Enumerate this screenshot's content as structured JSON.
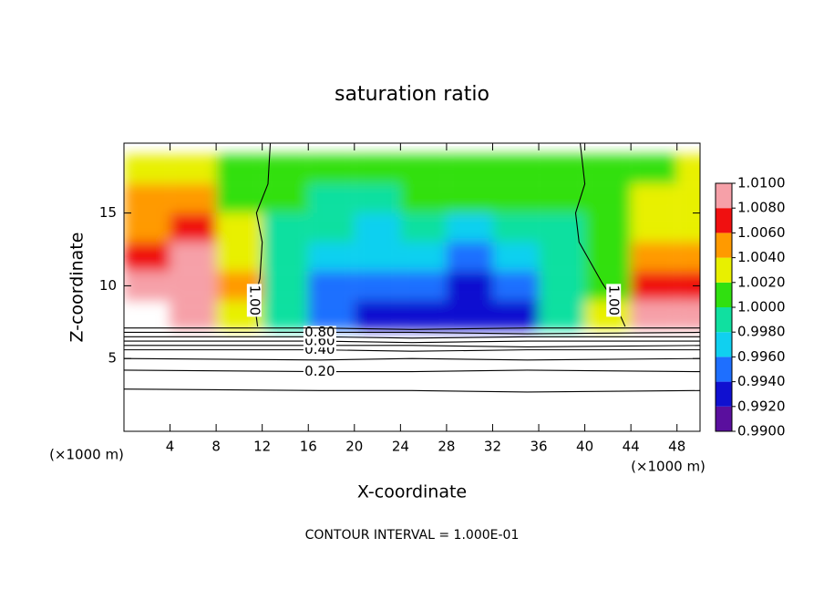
{
  "chart_data": {
    "type": "contour",
    "title": "saturation ratio",
    "xlabel": "X-coordinate",
    "ylabel": "Z-coordinate",
    "x_unit": "(×1000 m)",
    "footer": "CONTOUR INTERVAL = 1.000E-01",
    "xlim": [
      0,
      50
    ],
    "ylim": [
      0,
      19.8
    ],
    "xticks": [
      4,
      8,
      12,
      16,
      20,
      24,
      28,
      32,
      36,
      40,
      44,
      48
    ],
    "yticks": [
      5,
      10,
      15
    ],
    "x": [
      2,
      6,
      10,
      14,
      18,
      22,
      26,
      30,
      34,
      38,
      42,
      46,
      50
    ],
    "z": [
      18,
      16,
      14,
      12,
      10,
      8
    ],
    "values": [
      [
        1.003,
        1.002,
        1.001,
        1.0,
        1.0,
        1.0,
        1.0,
        1.0,
        1.0,
        1.0,
        1.0,
        1.001,
        1.002
      ],
      [
        1.004,
        1.004,
        1.001,
        1.0,
        0.9995,
        0.9995,
        1.0,
        1.0,
        1.0,
        1.0,
        1.0,
        1.002,
        1.003
      ],
      [
        1.005,
        1.006,
        1.002,
        0.9995,
        0.998,
        0.9975,
        0.998,
        0.997,
        0.998,
        0.9995,
        1.0,
        1.003,
        1.003
      ],
      [
        1.007,
        1.008,
        1.003,
        0.9995,
        0.997,
        0.996,
        0.996,
        0.995,
        0.996,
        0.999,
        1.0,
        1.004,
        1.005
      ],
      [
        1.009,
        1.009,
        1.004,
        0.9995,
        0.995,
        0.994,
        0.995,
        0.993,
        0.994,
        0.998,
        1.001,
        1.006,
        1.007
      ],
      [
        null,
        1.008,
        1.002,
        0.999,
        0.994,
        0.993,
        0.993,
        0.992,
        0.993,
        0.998,
        1.002,
        1.008,
        1.009
      ]
    ],
    "clim": [
      0.99,
      1.01
    ],
    "colors": [
      "#5a0f9e",
      "#1010d0",
      "#1e6fff",
      "#10d0f0",
      "#10e0a0",
      "#30e010",
      "#e8f000",
      "#ff9a00",
      "#f01010",
      "#f6a0a8"
    ],
    "colorbar_ticks": [
      {
        "value": 1.01,
        "label": "1.0100"
      },
      {
        "value": 1.008,
        "label": "1.0080"
      },
      {
        "value": 1.006,
        "label": "1.0060"
      },
      {
        "value": 1.004,
        "label": "1.0040"
      },
      {
        "value": 1.002,
        "label": "1.0020"
      },
      {
        "value": 1.0,
        "label": "1.0000"
      },
      {
        "value": 0.998,
        "label": "0.9980"
      },
      {
        "value": 0.996,
        "label": "0.9960"
      },
      {
        "value": 0.994,
        "label": "0.9940"
      },
      {
        "value": 0.992,
        "label": "0.9920"
      },
      {
        "value": 0.99,
        "label": "0.9900"
      }
    ],
    "contours": [
      {
        "level": 0.1,
        "x": [
          0,
          17,
          25,
          35,
          50
        ],
        "y": [
          2.9,
          2.8,
          2.8,
          2.7,
          2.8
        ]
      },
      {
        "level": 0.2,
        "label": "0.20",
        "x": [
          0,
          17,
          25,
          35,
          50
        ],
        "y": [
          4.2,
          4.1,
          4.1,
          4.2,
          4.1
        ]
      },
      {
        "level": 0.3,
        "x": [
          0,
          17,
          25,
          35,
          50
        ],
        "y": [
          5.0,
          4.9,
          5.0,
          4.9,
          5.0
        ]
      },
      {
        "level": 0.4,
        "label": "0.40",
        "x": [
          0,
          17,
          25,
          35,
          50
        ],
        "y": [
          5.6,
          5.6,
          5.5,
          5.6,
          5.6
        ]
      },
      {
        "level": 0.5,
        "x": [
          0,
          17,
          25,
          35,
          50
        ],
        "y": [
          5.9,
          5.9,
          5.9,
          5.8,
          5.9
        ]
      },
      {
        "level": 0.6,
        "label": "0.60",
        "x": [
          0,
          17,
          25,
          35,
          50
        ],
        "y": [
          6.2,
          6.2,
          6.1,
          6.2,
          6.2
        ]
      },
      {
        "level": 0.7,
        "x": [
          0,
          17,
          25,
          35,
          50
        ],
        "y": [
          6.5,
          6.5,
          6.4,
          6.5,
          6.5
        ]
      },
      {
        "level": 0.8,
        "label": "0.80",
        "x": [
          0,
          17,
          25,
          35,
          50
        ],
        "y": [
          6.8,
          6.8,
          6.8,
          6.7,
          6.8
        ]
      },
      {
        "level": 0.9,
        "x": [
          0,
          17,
          25,
          35,
          50
        ],
        "y": [
          7.1,
          7.1,
          7.0,
          7.1,
          7.1
        ]
      },
      {
        "level": 1.0,
        "label": "1.00",
        "x": [
          11.6,
          11.3,
          11.8,
          12.0,
          11.5,
          12.5,
          12.7
        ],
        "y": [
          7.2,
          9,
          10.5,
          13,
          15,
          17,
          19.8
        ]
      },
      {
        "level": 1.0,
        "label": "1.00",
        "x": [
          43.5,
          42.5,
          41.5,
          39.5,
          39.2,
          40.0,
          39.6
        ],
        "y": [
          7.2,
          9,
          10.2,
          13,
          15,
          17,
          19.8
        ]
      }
    ]
  }
}
